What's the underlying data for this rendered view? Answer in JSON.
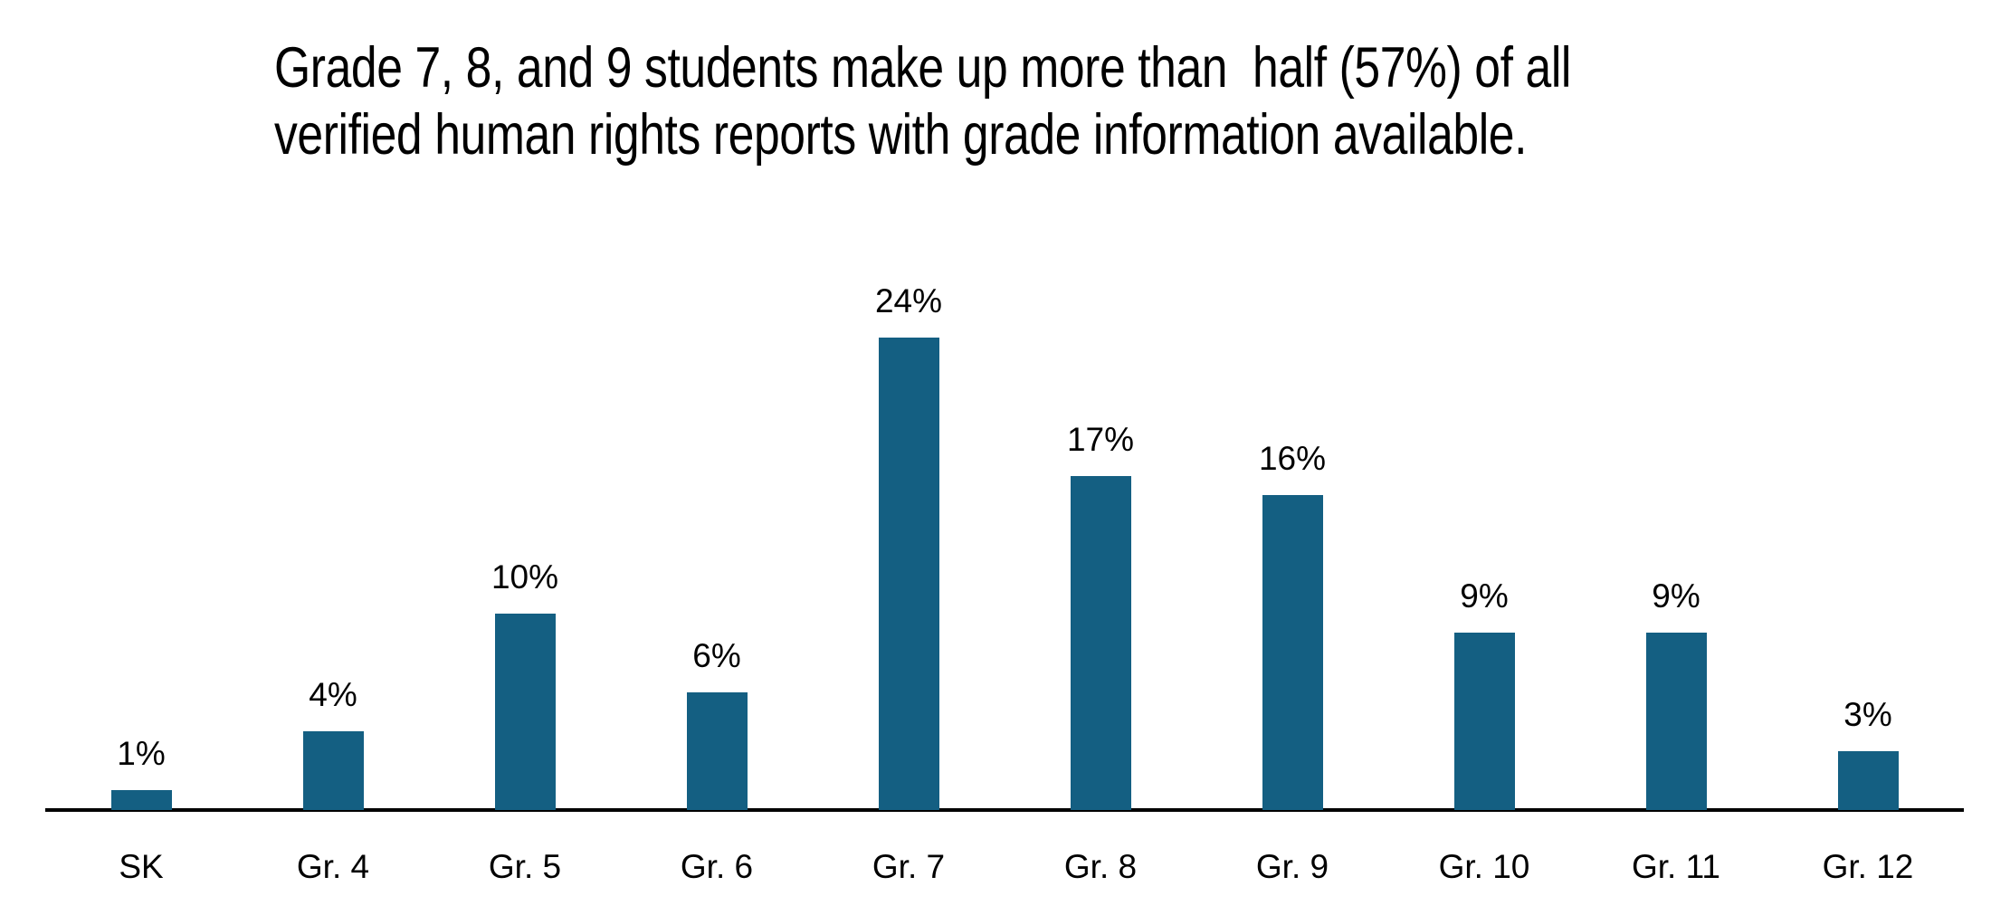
{
  "chart_data": {
    "type": "bar",
    "title": "Grade 7, 8, and 9 students make up more than  half (57%) of all verified human rights reports with grade information available.",
    "title_lines": [
      "Grade 7, 8, and 9 students make up more than  half (57%) of all",
      "verified human rights reports with grade information available."
    ],
    "categories": [
      "SK",
      "Gr. 4",
      "Gr. 5",
      "Gr. 6",
      "Gr. 7",
      "Gr. 8",
      "Gr. 9",
      "Gr. 10",
      "Gr. 11",
      "Gr. 12"
    ],
    "values": [
      1,
      4,
      10,
      6,
      24,
      17,
      16,
      9,
      9,
      3
    ],
    "data_labels": [
      "1%",
      "4%",
      "10%",
      "6%",
      "24%",
      "17%",
      "16%",
      "9%",
      "9%",
      "3%"
    ],
    "xlabel": "",
    "ylabel": "",
    "ylim": [
      0,
      26
    ],
    "grid": false,
    "legend": "none",
    "data_labels_shown": true,
    "colors": {
      "bar": "#145F82",
      "axis": "#000000",
      "text": "#000000",
      "background": "#FFFFFF"
    }
  }
}
